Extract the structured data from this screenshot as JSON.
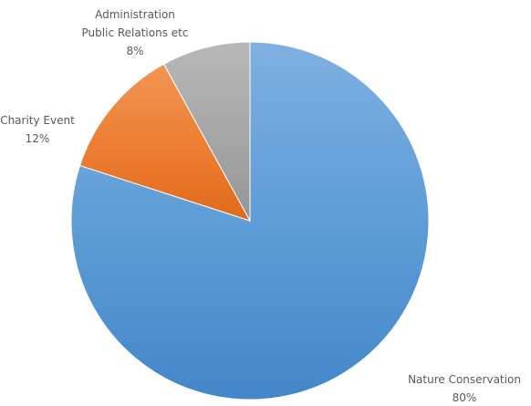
{
  "chart_data": {
    "type": "pie",
    "title": "",
    "start_angle_deg": 0,
    "direction": "clockwise",
    "slices": [
      {
        "label_lines": [
          "Nature Conservation"
        ],
        "value": 80,
        "value_label": "80%",
        "color": "#5b9bd5",
        "color_light": "#7eb0e1",
        "color_dark": "#4386c9"
      },
      {
        "label_lines": [
          "Charity Event"
        ],
        "value": 12,
        "value_label": "12%",
        "color": "#ed7d31",
        "color_light": "#f19554",
        "color_dark": "#e06a1b"
      },
      {
        "label_lines": [
          "Administration",
          "Public Relations etc"
        ],
        "value": 8,
        "value_label": "8%",
        "color": "#a5a5a5",
        "color_light": "#b8b8b8",
        "color_dark": "#959595"
      }
    ],
    "legend": "none",
    "data_labels": "outside"
  }
}
